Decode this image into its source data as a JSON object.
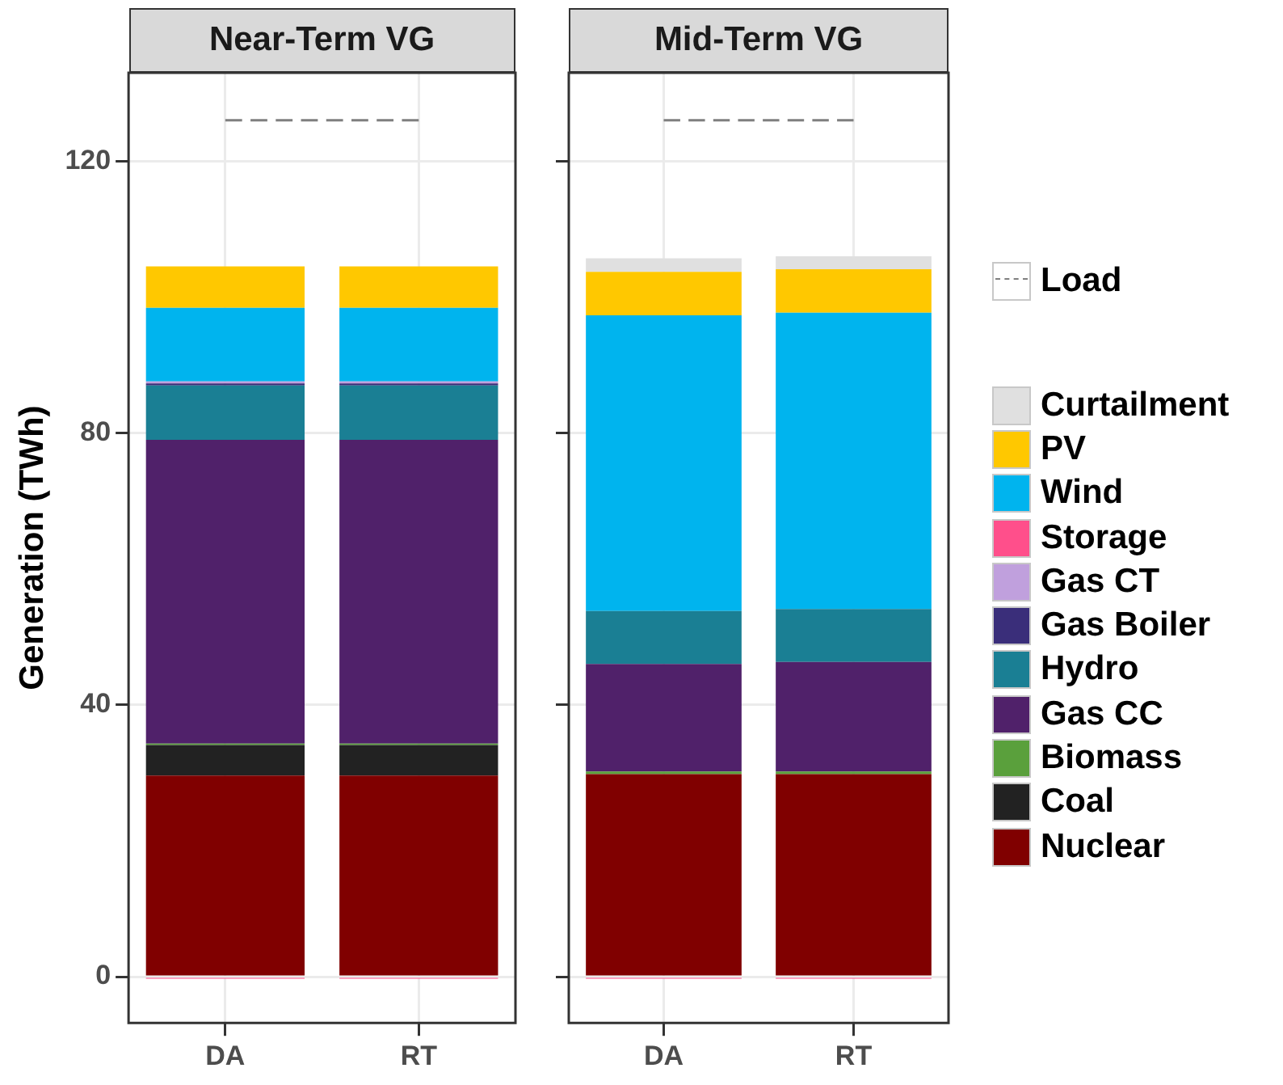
{
  "chart_data": [
    {
      "type": "bar",
      "title": "Near-Term VG",
      "ylabel": "Generation (TWh)",
      "categories": [
        "DA",
        "RT"
      ],
      "stacked": true,
      "ylim": [
        -6.8,
        133
      ],
      "yticks": [
        0,
        40,
        80,
        120
      ],
      "grid": true,
      "legend": "right",
      "series": [
        {
          "name": "Nuclear",
          "color": "#800000",
          "values": [
            29.6,
            29.6
          ]
        },
        {
          "name": "Coal",
          "color": "#222222",
          "values": [
            4.5,
            4.5
          ]
        },
        {
          "name": "Biomass",
          "color": "#5aa03c",
          "values": [
            0.2,
            0.2
          ]
        },
        {
          "name": "Gas CC",
          "color": "#50216a",
          "values": [
            44.7,
            44.7
          ]
        },
        {
          "name": "Hydro",
          "color": "#1a7f94",
          "values": [
            8.0,
            8.0
          ]
        },
        {
          "name": "Gas Boiler",
          "color": "#3a2e7a",
          "values": [
            0.3,
            0.3
          ]
        },
        {
          "name": "Gas CT",
          "color": "#c0a0dd",
          "values": [
            0.3,
            0.3
          ]
        },
        {
          "name": "Storage",
          "color": "#ff4f8b",
          "values": [
            -0.3,
            -0.3
          ]
        },
        {
          "name": "Wind",
          "color": "#00b4ee",
          "values": [
            10.8,
            10.8
          ]
        },
        {
          "name": "PV",
          "color": "#ffc800",
          "values": [
            6.1,
            6.1
          ]
        },
        {
          "name": "Curtailment",
          "color": "#e0e0e0",
          "values": [
            0,
            0
          ]
        },
        {
          "name": "Load",
          "type": "line",
          "color": "#7f7f7f",
          "line_style": "dashed",
          "marker": "none",
          "values": [
            126,
            126
          ]
        }
      ]
    },
    {
      "type": "bar",
      "title": "Mid-Term VG",
      "categories": [
        "DA",
        "RT"
      ],
      "stacked": true,
      "ylim": [
        -6.8,
        133
      ],
      "yticks": [
        0,
        40,
        80,
        120
      ],
      "grid": true,
      "tick_labels": "x",
      "series": [
        {
          "color": "#800000",
          "values": [
            29.8,
            29.8
          ]
        },
        {
          "color": "#222222",
          "values": [
            0,
            0
          ]
        },
        {
          "color": "#5aa03c",
          "values": [
            0.4,
            0.4
          ]
        },
        {
          "color": "#50216a",
          "values": [
            15.8,
            16.1
          ]
        },
        {
          "color": "#1a7f94",
          "values": [
            7.8,
            7.8
          ]
        },
        {
          "color": "#3a2e7a",
          "values": [
            0,
            0
          ]
        },
        {
          "color": "#c0a0dd",
          "values": [
            0,
            0
          ]
        },
        {
          "color": "#ff4f8b",
          "values": [
            -0.3,
            -0.3
          ]
        },
        {
          "color": "#00b4ee",
          "values": [
            43.5,
            43.6
          ]
        },
        {
          "color": "#ffc800",
          "values": [
            6.4,
            6.4
          ]
        },
        {
          "color": "#e0e0e0",
          "values": [
            2.0,
            1.9
          ]
        },
        {
          "type": "line",
          "color": "#7f7f7f",
          "line_style": "dashed",
          "marker": "none",
          "values": [
            126,
            126
          ]
        }
      ]
    }
  ]
}
